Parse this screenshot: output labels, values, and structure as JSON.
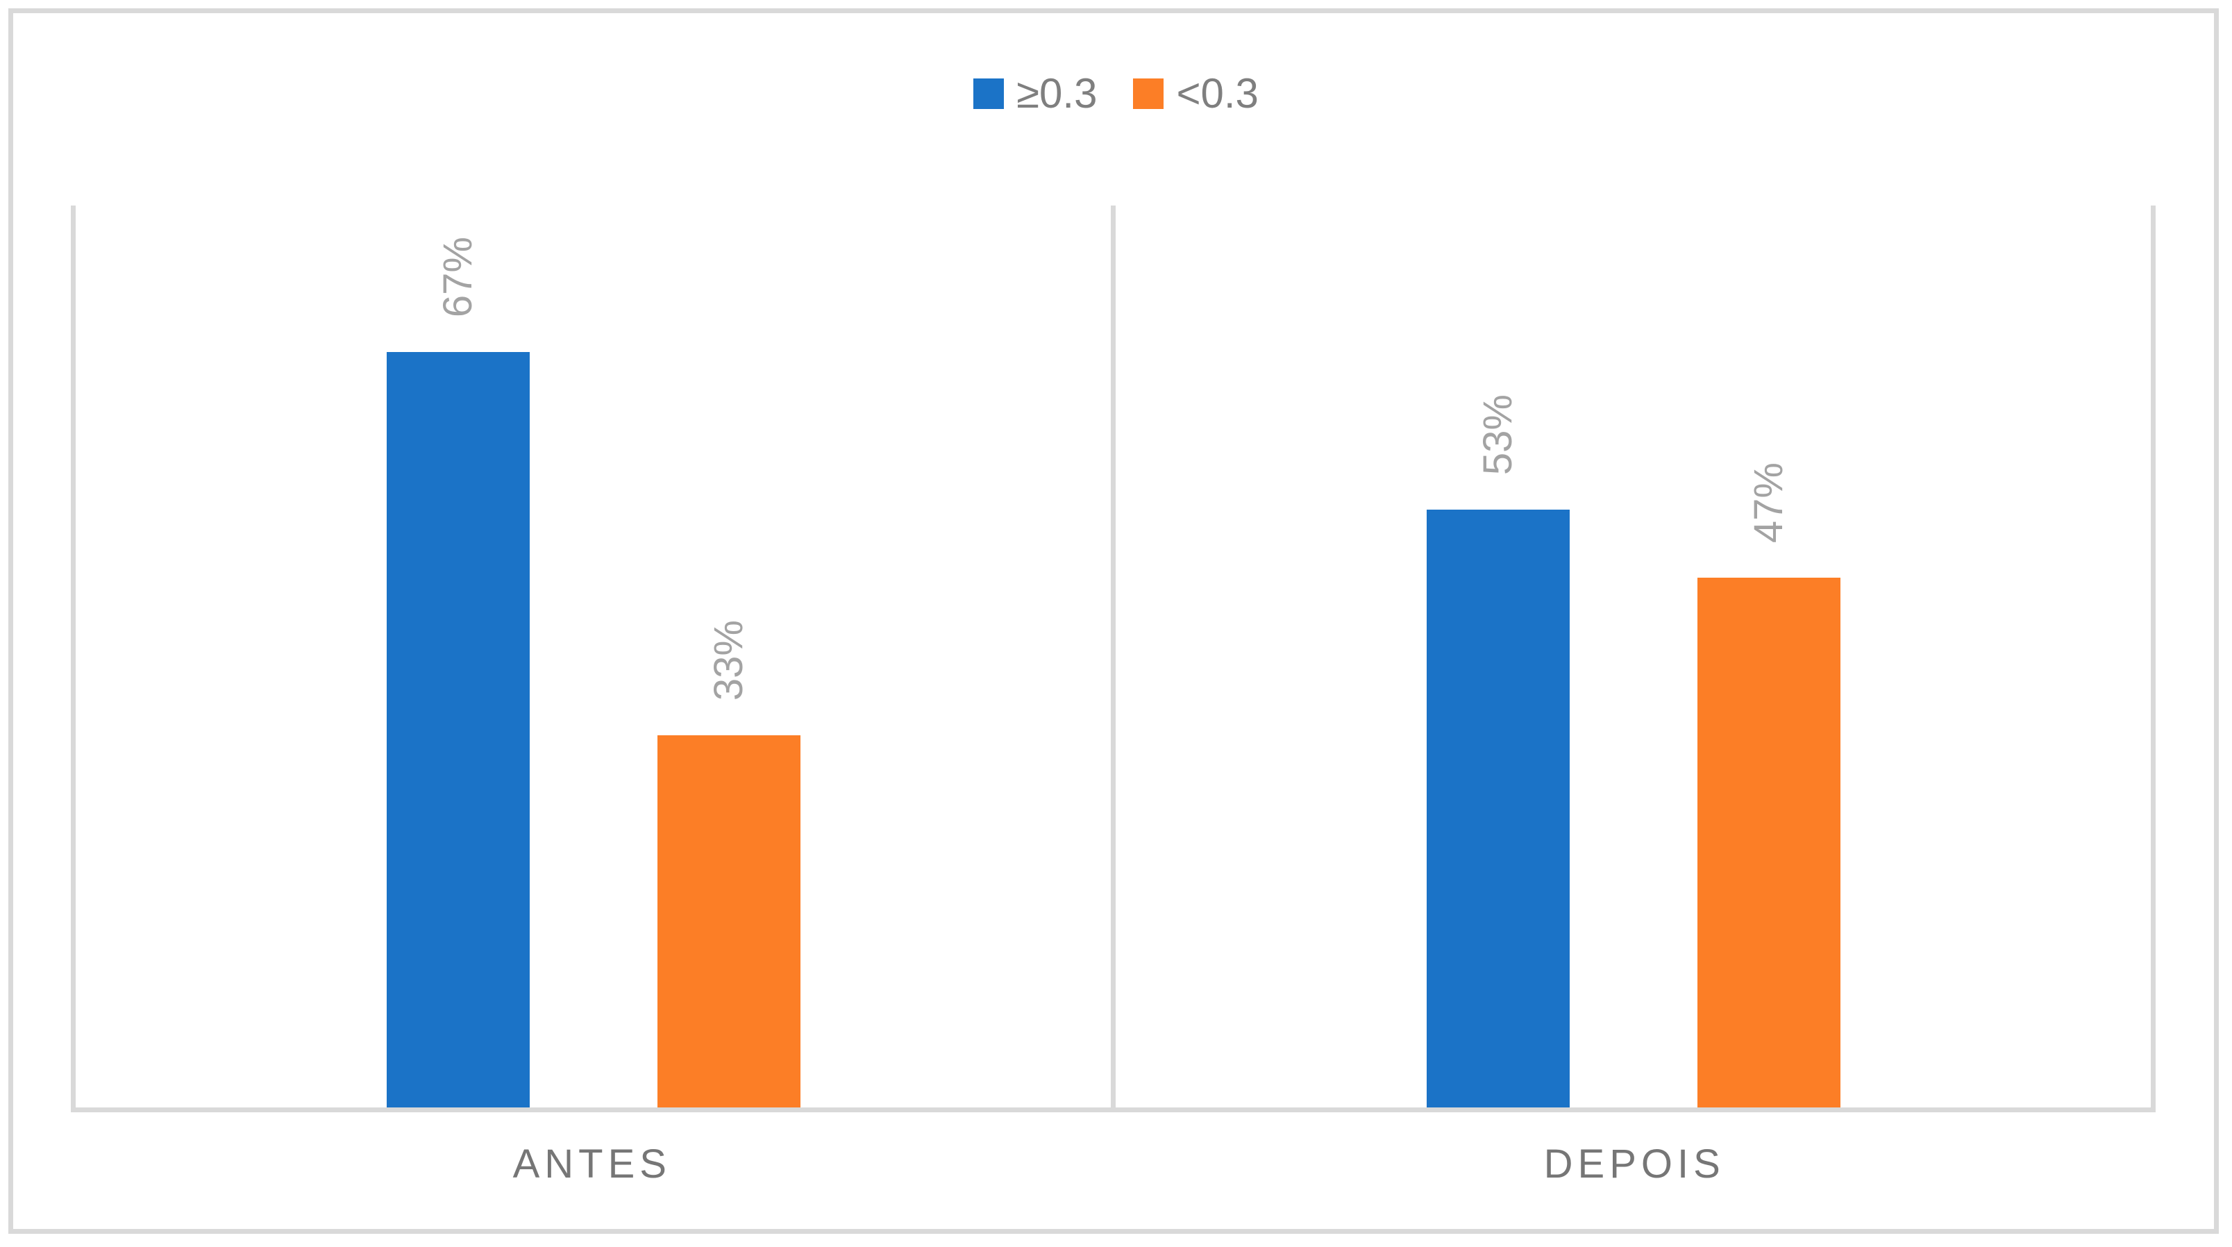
{
  "chart": {
    "background": "#FFFFFF",
    "border_color": "#D9D9D9",
    "axis_line_color": "#D9D9D9"
  },
  "legend": {
    "items": [
      {
        "label": "≥0.3",
        "color": "#1B73C7"
      },
      {
        "label": "<0.3",
        "color": "#FC7E26"
      }
    ]
  },
  "chart_data": {
    "type": "bar",
    "title": "",
    "xlabel": "",
    "ylabel": "",
    "categories": [
      "ANTES",
      "DEPOIS"
    ],
    "series": [
      {
        "name": "≥0.3",
        "color": "#1B73C7",
        "values": [
          67,
          53
        ],
        "labels": [
          "67%",
          "53%"
        ]
      },
      {
        "name": "<0.3",
        "color": "#FC7E26",
        "values": [
          33,
          47
        ],
        "labels": [
          "33%",
          "47%"
        ]
      }
    ],
    "value_unit": "%",
    "ylim": [
      0,
      80
    ],
    "grid": false,
    "y_axis_visible": false,
    "legend_position": "top-center",
    "data_label_rotation": 270,
    "data_label_color": "#A3A3A3",
    "category_label_color": "#767676",
    "legend_text_color": "#7F7F7F"
  }
}
